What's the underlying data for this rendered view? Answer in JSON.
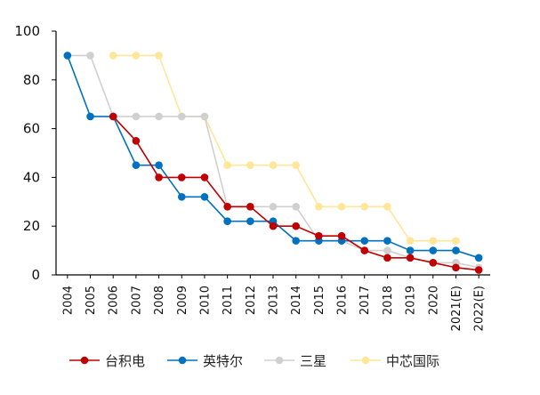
{
  "chart_data": {
    "type": "line",
    "title": "",
    "xlabel": "",
    "ylabel": "",
    "ylim": [
      0,
      100
    ],
    "yticks": [
      0,
      20,
      40,
      60,
      80,
      100
    ],
    "grid": false,
    "legend_position": "bottom",
    "categories": [
      "2004",
      "2005",
      "2006",
      "2007",
      "2008",
      "2009",
      "2010",
      "2011",
      "2012",
      "2013",
      "2014",
      "2015",
      "2016",
      "2017",
      "2018",
      "2019",
      "2020",
      "2021(E)",
      "2022(E)"
    ],
    "series": [
      {
        "name": "台积电",
        "color": "#c00000",
        "values": [
          null,
          null,
          65,
          55,
          40,
          40,
          40,
          28,
          28,
          20,
          20,
          16,
          16,
          10,
          7,
          7,
          5,
          3,
          2
        ]
      },
      {
        "name": "英特尔",
        "color": "#0070c0",
        "values": [
          90,
          65,
          65,
          45,
          45,
          32,
          32,
          22,
          22,
          22,
          14,
          14,
          14,
          14,
          14,
          10,
          10,
          10,
          7
        ]
      },
      {
        "name": "三星",
        "color": "#d0d0d0",
        "values": [
          90,
          90,
          65,
          65,
          65,
          65,
          65,
          28,
          28,
          28,
          28,
          14,
          14,
          10,
          10,
          7,
          5,
          5,
          3
        ]
      },
      {
        "name": "中芯国际",
        "color": "#ffe699",
        "values": [
          null,
          null,
          90,
          90,
          90,
          65,
          65,
          45,
          45,
          45,
          45,
          28,
          28,
          28,
          28,
          14,
          14,
          14,
          null
        ]
      }
    ]
  }
}
